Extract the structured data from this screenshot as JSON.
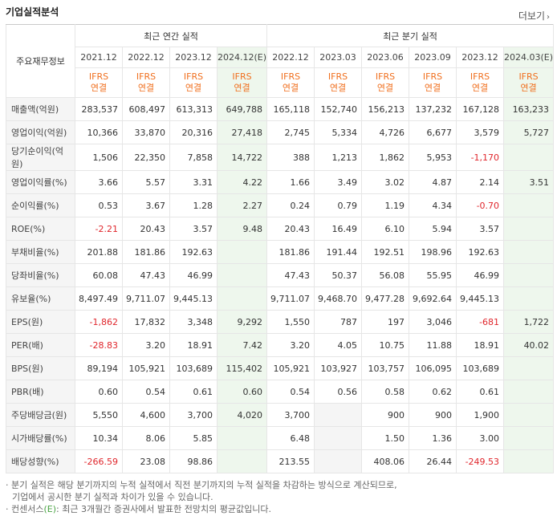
{
  "section_title": "기업실적분석",
  "more_label": "더보기",
  "table": {
    "row_header_label": "주요재무정보",
    "annual_group": "최근 연간 실적",
    "quarter_group": "최근 분기 실적",
    "periods": [
      "2021.12",
      "2022.12",
      "2023.12",
      "2024.12(E)",
      "2022.12",
      "2023.03",
      "2023.06",
      "2023.09",
      "2023.12",
      "2024.03(E)"
    ],
    "basis_top": [
      "IFRS",
      "IFRS",
      "IFRS",
      "IFRS",
      "IFRS",
      "IFRS",
      "IFRS",
      "IFRS",
      "IFRS",
      "IFRS"
    ],
    "basis_bottom": [
      "연결",
      "연결",
      "연결",
      "연결",
      "연결",
      "연결",
      "연결",
      "연결",
      "연결",
      "연결"
    ],
    "rows": [
      {
        "label": "매출액(억원)",
        "values": [
          "283,537",
          "608,497",
          "613,313",
          "649,788",
          "165,118",
          "152,740",
          "156,213",
          "137,232",
          "167,128",
          "163,233"
        ]
      },
      {
        "label": "영업이익(억원)",
        "values": [
          "10,366",
          "33,870",
          "20,316",
          "27,418",
          "2,745",
          "5,334",
          "4,726",
          "6,677",
          "3,579",
          "5,727"
        ]
      },
      {
        "label": "당기순이익(억원)",
        "values": [
          "1,506",
          "22,350",
          "7,858",
          "14,722",
          "388",
          "1,213",
          "1,862",
          "5,953",
          "-1,170",
          ""
        ]
      },
      {
        "label": "영업이익률(%)",
        "values": [
          "3.66",
          "5.57",
          "3.31",
          "4.22",
          "1.66",
          "3.49",
          "3.02",
          "4.87",
          "2.14",
          "3.51"
        ]
      },
      {
        "label": "순이익률(%)",
        "values": [
          "0.53",
          "3.67",
          "1.28",
          "2.27",
          "0.24",
          "0.79",
          "1.19",
          "4.34",
          "-0.70",
          ""
        ]
      },
      {
        "label": "ROE(%)",
        "values": [
          "-2.21",
          "20.43",
          "3.57",
          "9.48",
          "20.43",
          "16.49",
          "6.10",
          "5.94",
          "3.57",
          ""
        ]
      },
      {
        "label": "부채비율(%)",
        "values": [
          "201.88",
          "181.86",
          "192.63",
          "",
          "181.86",
          "191.44",
          "192.51",
          "198.96",
          "192.63",
          ""
        ]
      },
      {
        "label": "당좌비율(%)",
        "values": [
          "60.08",
          "47.43",
          "46.99",
          "",
          "47.43",
          "50.37",
          "56.08",
          "55.95",
          "46.99",
          ""
        ]
      },
      {
        "label": "유보율(%)",
        "values": [
          "8,497.49",
          "9,711.07",
          "9,445.13",
          "",
          "9,711.07",
          "9,468.70",
          "9,477.28",
          "9,692.64",
          "9,445.13",
          ""
        ]
      },
      {
        "label": "EPS(원)",
        "values": [
          "-1,862",
          "17,832",
          "3,348",
          "9,292",
          "1,550",
          "787",
          "197",
          "3,046",
          "-681",
          "1,722"
        ]
      },
      {
        "label": "PER(배)",
        "values": [
          "-28.83",
          "3.20",
          "18.91",
          "7.42",
          "3.20",
          "4.05",
          "10.75",
          "11.88",
          "18.91",
          "40.02"
        ]
      },
      {
        "label": "BPS(원)",
        "values": [
          "89,194",
          "105,921",
          "103,689",
          "115,402",
          "105,921",
          "103,927",
          "103,757",
          "106,095",
          "103,689",
          ""
        ]
      },
      {
        "label": "PBR(배)",
        "values": [
          "0.60",
          "0.54",
          "0.61",
          "0.60",
          "0.54",
          "0.56",
          "0.58",
          "0.62",
          "0.61",
          ""
        ]
      },
      {
        "label": "주당배당금(원)",
        "values": [
          "5,550",
          "4,600",
          "3,700",
          "4,020",
          "3,700",
          "",
          "900",
          "900",
          "1,900",
          ""
        ]
      },
      {
        "label": "시가배당률(%)",
        "values": [
          "10.34",
          "8.06",
          "5.85",
          "",
          "6.48",
          "",
          "1.50",
          "1.36",
          "3.00",
          ""
        ]
      },
      {
        "label": "배당성향(%)",
        "values": [
          "-266.59",
          "23.08",
          "98.86",
          "",
          "213.55",
          "",
          "408.06",
          "26.44",
          "-249.53",
          ""
        ]
      }
    ]
  },
  "notes": {
    "line1": "· 분기 실적은 해당 분기까지의 누적 실적에서 직전 분기까지의 누적 실적을 차감하는 방식으로 계산되므로,",
    "line2": "기업에서 공시한 분기 실적과 차이가 있을 수 있습니다.",
    "line3_pre": "· 컨센서스",
    "line3_e": "(E)",
    "line3_post": ": 최근 3개월간 증권사에서 발표한 전망치의 평균값입니다."
  }
}
